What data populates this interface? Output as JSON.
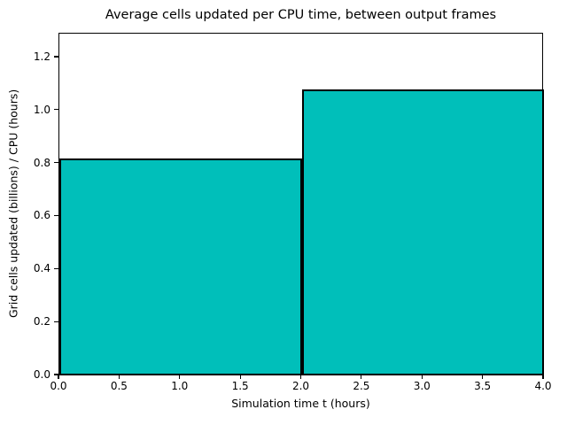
{
  "chart_data": {
    "type": "bar",
    "title": "Average cells updated per CPU time, between output frames",
    "xlabel": "Simulation time t (hours)",
    "ylabel": "Grid cells updated (billions) / CPU (hours)",
    "bin_edges": [
      0,
      2,
      4
    ],
    "values": [
      0.82,
      1.08
    ],
    "bars": [
      {
        "x_start": 0,
        "x_end": 2,
        "value": 0.82
      },
      {
        "x_start": 2,
        "x_end": 4,
        "value": 1.08
      }
    ],
    "xlim": [
      0,
      4
    ],
    "ylim": [
      0,
      1.29
    ],
    "xticks": [
      "0.0",
      "0.5",
      "1.0",
      "1.5",
      "2.0",
      "2.5",
      "3.0",
      "3.5",
      "4.0"
    ],
    "xtick_values": [
      0,
      0.5,
      1,
      1.5,
      2,
      2.5,
      3,
      3.5,
      4
    ],
    "yticks": [
      "0.0",
      "0.2",
      "0.4",
      "0.6",
      "0.8",
      "1.0",
      "1.2"
    ],
    "ytick_values": [
      0,
      0.2,
      0.4,
      0.6,
      0.8,
      1,
      1.2
    ],
    "grid": false,
    "legend": null,
    "colors": {
      "bar_fill": "#00bfba",
      "bar_edge": "#000000",
      "background": "#ffffff",
      "text": "#000000"
    }
  }
}
